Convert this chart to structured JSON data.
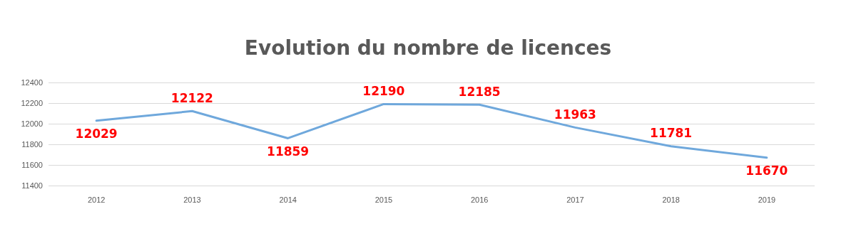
{
  "chart_data": {
    "type": "line",
    "title": "Evolution du nombre de licences",
    "categories": [
      "2012",
      "2013",
      "2014",
      "2015",
      "2016",
      "2017",
      "2018",
      "2019"
    ],
    "series": [
      {
        "color": "#6fa8dc",
        "values": [
          12029,
          12122,
          11859,
          12190,
          12185,
          11963,
          11781,
          11670
        ]
      }
    ],
    "ylim": [
      11400,
      12400
    ],
    "yticks": [
      11400,
      11600,
      11800,
      12000,
      12200,
      12400
    ],
    "grid": "y",
    "data_labels": true,
    "marker": "none",
    "line_style": "solid"
  }
}
